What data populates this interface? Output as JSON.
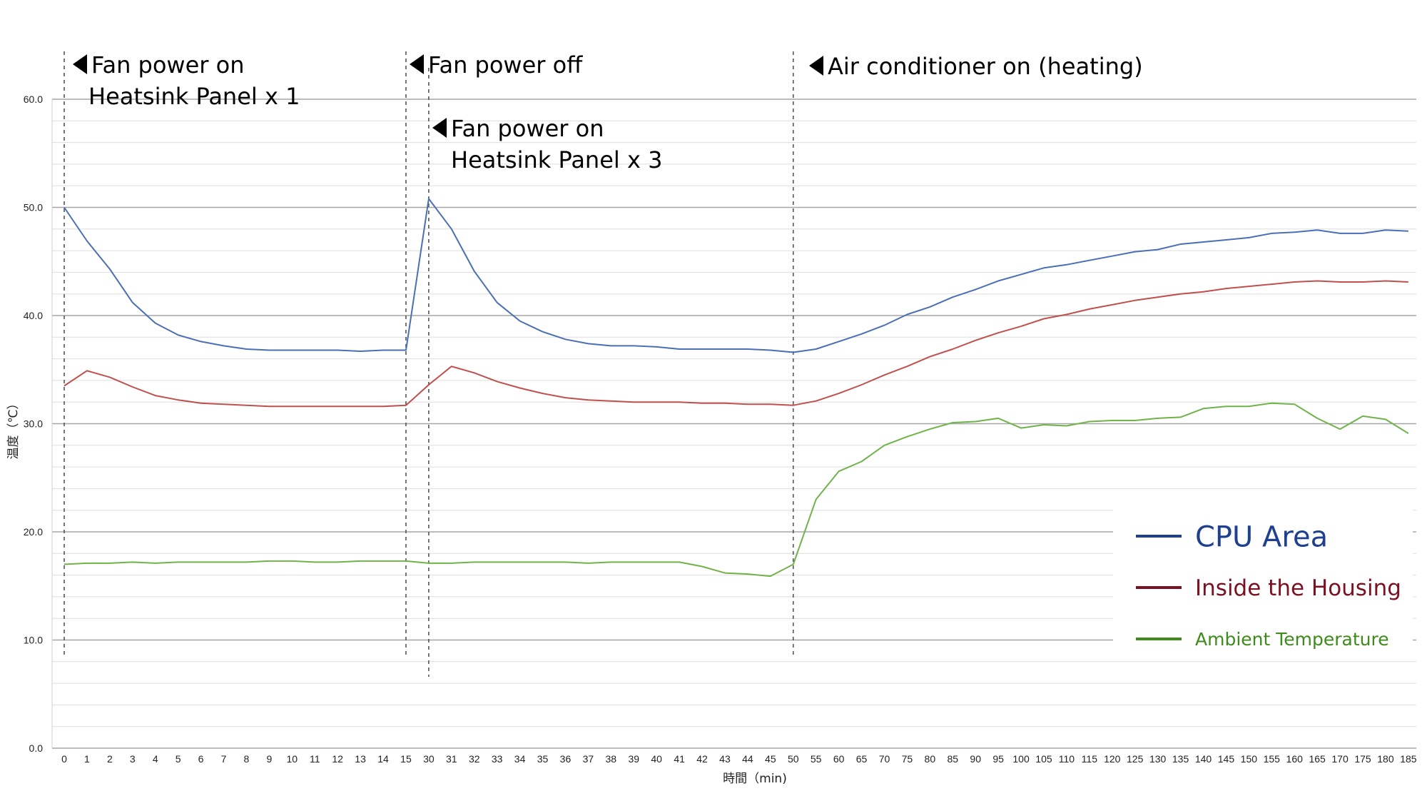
{
  "chart_data": {
    "type": "line",
    "title": "",
    "xlabel": "時間（min)",
    "ylabel": "温度（℃）",
    "ylim": [
      0,
      60
    ],
    "yticks": [
      "0.0",
      "10.0",
      "20.0",
      "30.0",
      "40.0",
      "50.0",
      "60.0"
    ],
    "grid": "horizontal major and minor lines",
    "legend_position": "bottom-right",
    "categories": [
      "0",
      "1",
      "2",
      "3",
      "4",
      "5",
      "6",
      "7",
      "8",
      "9",
      "10",
      "11",
      "12",
      "13",
      "14",
      "15",
      "30",
      "31",
      "32",
      "33",
      "34",
      "35",
      "36",
      "37",
      "38",
      "39",
      "40",
      "41",
      "42",
      "43",
      "44",
      "45",
      "50",
      "55",
      "60",
      "65",
      "70",
      "75",
      "80",
      "85",
      "90",
      "95",
      "100",
      "105",
      "110",
      "115",
      "120",
      "125",
      "130",
      "135",
      "140",
      "145",
      "150",
      "155",
      "160",
      "165",
      "170",
      "175",
      "180",
      "185"
    ],
    "series": [
      {
        "name": "CPU Area",
        "color": "#4a6fb5",
        "legend_color": "#1f3f8f",
        "values": [
          50.0,
          46.9,
          44.3,
          41.2,
          39.3,
          38.2,
          37.6,
          37.2,
          36.9,
          36.8,
          36.8,
          36.8,
          36.8,
          36.7,
          36.8,
          36.8,
          50.8,
          48.0,
          44.1,
          41.2,
          39.5,
          38.5,
          37.8,
          37.4,
          37.2,
          37.2,
          37.1,
          36.9,
          36.9,
          36.9,
          36.9,
          36.8,
          36.6,
          36.9,
          37.6,
          38.3,
          39.1,
          40.1,
          40.8,
          41.7,
          42.4,
          43.2,
          43.8,
          44.4,
          44.7,
          45.1,
          45.5,
          45.9,
          46.1,
          46.6,
          46.8,
          47.0,
          47.2,
          47.6,
          47.7,
          47.9,
          47.6,
          47.6,
          47.9,
          47.8
        ]
      },
      {
        "name": "Inside the Housing",
        "color": "#c0504d",
        "legend_color": "#7a1020",
        "values": [
          33.5,
          34.9,
          34.3,
          33.4,
          32.6,
          32.2,
          31.9,
          31.8,
          31.7,
          31.6,
          31.6,
          31.6,
          31.6,
          31.6,
          31.6,
          31.7,
          33.6,
          35.3,
          34.7,
          33.9,
          33.3,
          32.8,
          32.4,
          32.2,
          32.1,
          32.0,
          32.0,
          32.0,
          31.9,
          31.9,
          31.8,
          31.8,
          31.7,
          32.1,
          32.8,
          33.6,
          34.5,
          35.3,
          36.2,
          36.9,
          37.7,
          38.4,
          39.0,
          39.7,
          40.1,
          40.6,
          41.0,
          41.4,
          41.7,
          42.0,
          42.2,
          42.5,
          42.7,
          42.9,
          43.1,
          43.2,
          43.1,
          43.1,
          43.2,
          43.1
        ]
      },
      {
        "name": "Ambient Temperature",
        "color": "#70b34a",
        "legend_color": "#3f8a1c",
        "values": [
          17.0,
          17.1,
          17.1,
          17.2,
          17.1,
          17.2,
          17.2,
          17.2,
          17.2,
          17.3,
          17.3,
          17.2,
          17.2,
          17.3,
          17.3,
          17.3,
          17.1,
          17.1,
          17.2,
          17.2,
          17.2,
          17.2,
          17.2,
          17.1,
          17.2,
          17.2,
          17.2,
          17.2,
          16.8,
          16.2,
          16.1,
          15.9,
          17.0,
          23.0,
          25.6,
          26.5,
          28.0,
          28.8,
          29.5,
          30.1,
          30.2,
          30.5,
          29.6,
          29.9,
          29.8,
          30.2,
          30.3,
          30.3,
          30.5,
          30.6,
          31.4,
          31.6,
          31.6,
          31.9,
          31.8,
          30.5,
          29.5,
          30.7,
          30.4,
          29.1
        ]
      }
    ],
    "annotations": [
      {
        "at_category": "0",
        "lines": [
          "Fan power on",
          "Heatsink Panel x 1"
        ]
      },
      {
        "at_category": "15",
        "lines": [
          "Fan power off"
        ]
      },
      {
        "at_category": "30",
        "lines": [
          "Fan power on",
          "Heatsink Panel x 3"
        ]
      },
      {
        "at_category": "50",
        "lines": [
          "Air conditioner on (heating)"
        ]
      }
    ]
  }
}
